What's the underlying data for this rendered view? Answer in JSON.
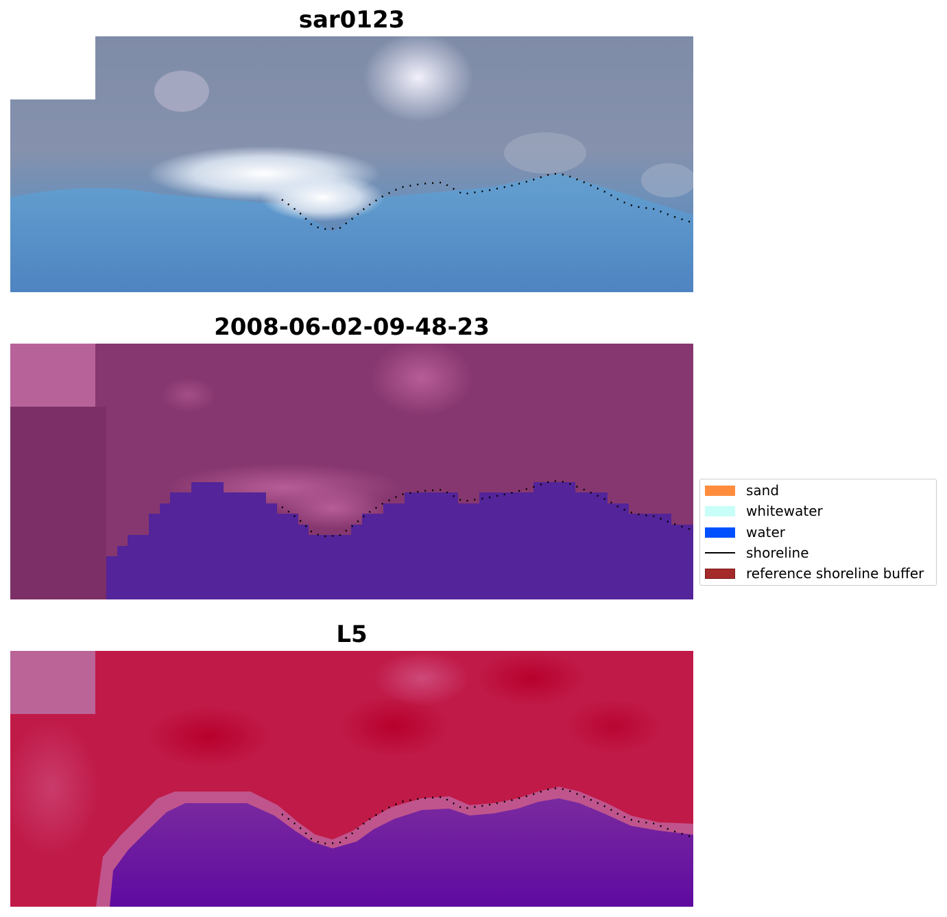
{
  "panels": [
    {
      "title": "sar0123",
      "kind": "rgb"
    },
    {
      "title": "2008-06-02-09-48-23",
      "kind": "classification"
    },
    {
      "title": "L5",
      "kind": "index"
    }
  ],
  "legend": {
    "items": [
      {
        "label": "sand",
        "color": "#ff8c3c",
        "type": "patch"
      },
      {
        "label": "whitewater",
        "color": "#c8fff8",
        "type": "patch"
      },
      {
        "label": "water",
        "color": "#0050ff",
        "type": "patch"
      },
      {
        "label": "shoreline",
        "color": "#000000",
        "type": "line"
      },
      {
        "label": "reference shoreline buffer",
        "color": "#a52a2a",
        "type": "patch"
      }
    ]
  }
}
